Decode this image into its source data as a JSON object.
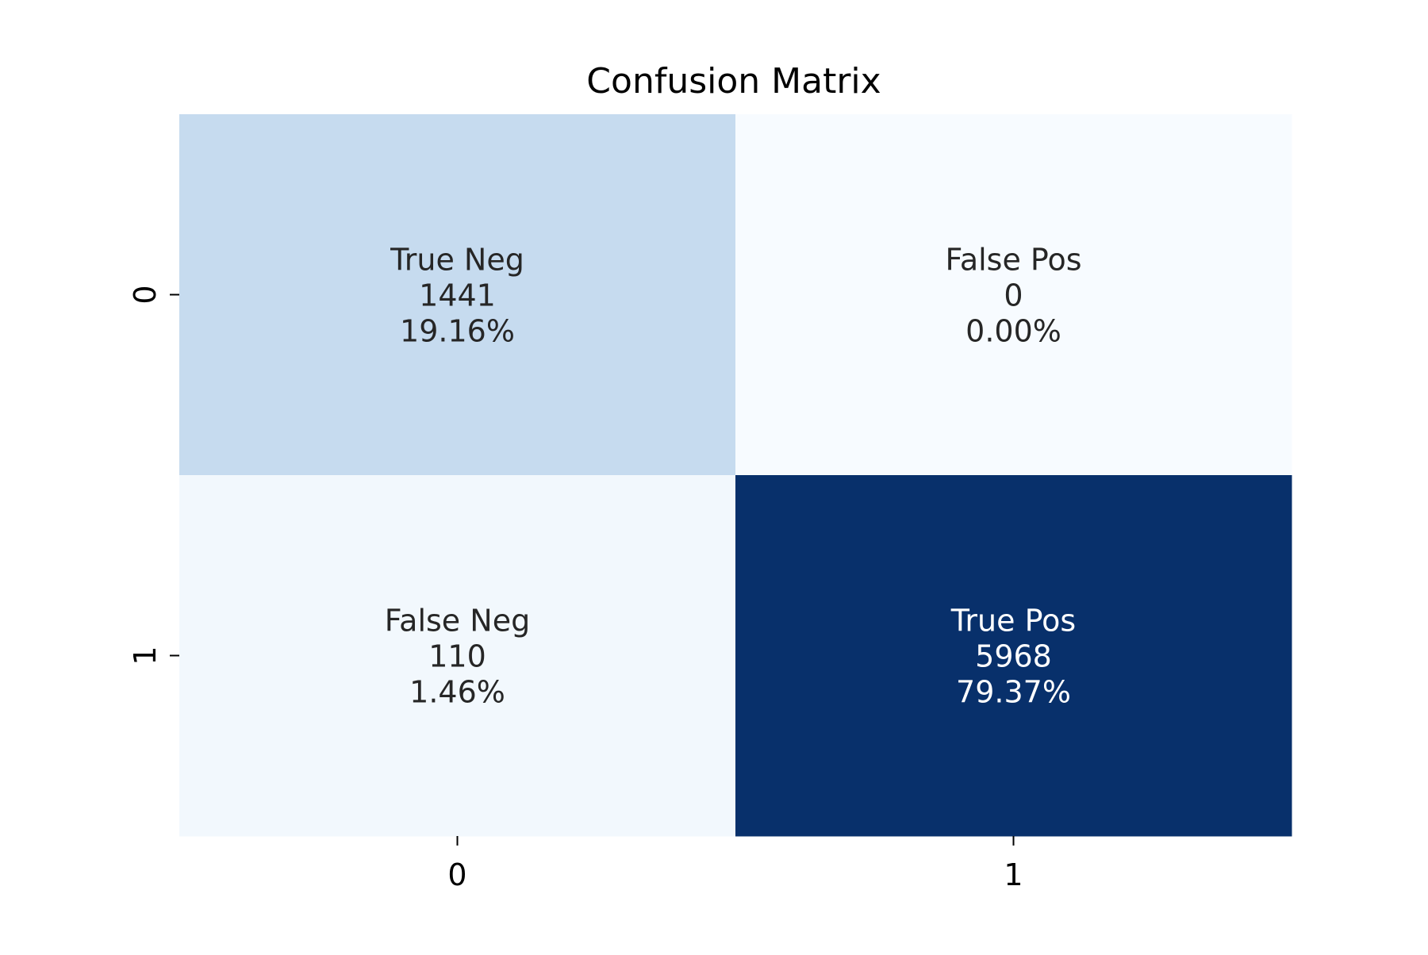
{
  "chart_data": {
    "type": "heatmap",
    "title": "Confusion Matrix",
    "xlabel": "",
    "ylabel": "",
    "x_tick_labels": [
      "0",
      "1"
    ],
    "y_tick_labels": [
      "0",
      "1"
    ],
    "colormap": "Blues",
    "value_range": [
      0,
      5968
    ],
    "colorbar": false,
    "grid": false,
    "cells": [
      [
        {
          "label": "True Neg",
          "count": 1441,
          "percent": "19.16%",
          "count_text": "1441",
          "color": "#c6dbef",
          "text_color": "#262626"
        },
        {
          "label": "False Pos",
          "count": 0,
          "percent": "0.00%",
          "count_text": "0",
          "color": "#f7fbff",
          "text_color": "#262626"
        }
      ],
      [
        {
          "label": "False Neg",
          "count": 110,
          "percent": "1.46%",
          "count_text": "110",
          "color": "#f2f8fd",
          "text_color": "#262626"
        },
        {
          "label": "True Pos",
          "count": 5968,
          "percent": "79.37%",
          "count_text": "5968",
          "color": "#08306b",
          "text_color": "#ffffff"
        }
      ]
    ]
  }
}
